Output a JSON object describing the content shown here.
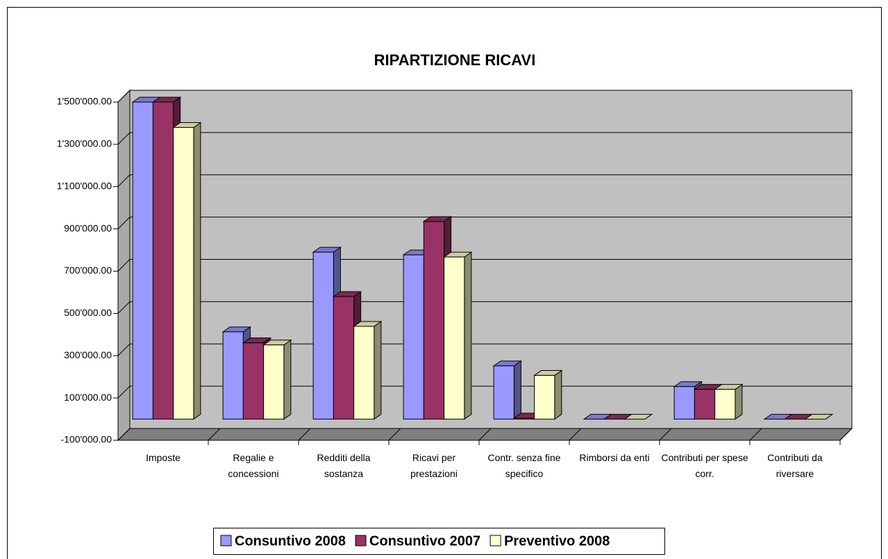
{
  "chart_data": {
    "type": "bar3d",
    "title": "RIPARTIZIONE RICAVI",
    "categories": [
      "Imposte",
      "Regalie e concessioni",
      "Redditi della sostanza",
      "Ricavi per prestazioni",
      "Contr. senza fine specifico",
      "Rimborsi da enti",
      "Contributi per spese corr.",
      "Contributi da riversare"
    ],
    "series": [
      {
        "name": "Consuntivo 2008",
        "color": "#9999ff",
        "values": [
          1500000,
          413000,
          790000,
          777000,
          252000,
          0,
          154000,
          0
        ]
      },
      {
        "name": "Consuntivo 2007",
        "color": "#993366",
        "values": [
          1500000,
          361000,
          580000,
          935000,
          5000,
          0,
          141000,
          0
        ]
      },
      {
        "name": "Preventivo 2008",
        "color": "#ffffcc",
        "values": [
          1380000,
          351000,
          439000,
          767000,
          207000,
          0,
          141000,
          0
        ]
      }
    ],
    "ylim": [
      -100000,
      1500000
    ],
    "yticks": [
      {
        "value": -100000,
        "label": "-100'000.00"
      },
      {
        "value": 100000,
        "label": "100'000.00"
      },
      {
        "value": 300000,
        "label": "300'000.00"
      },
      {
        "value": 500000,
        "label": "500'000.00"
      },
      {
        "value": 700000,
        "label": "700'000.00"
      },
      {
        "value": 900000,
        "label": "900'000.00"
      },
      {
        "value": 1100000,
        "label": "1'100'000.00"
      },
      {
        "value": 1300000,
        "label": "1'300'000.00"
      },
      {
        "value": 1500000,
        "label": "1'500'000.00"
      }
    ],
    "grid": true,
    "legend": "bottom"
  }
}
